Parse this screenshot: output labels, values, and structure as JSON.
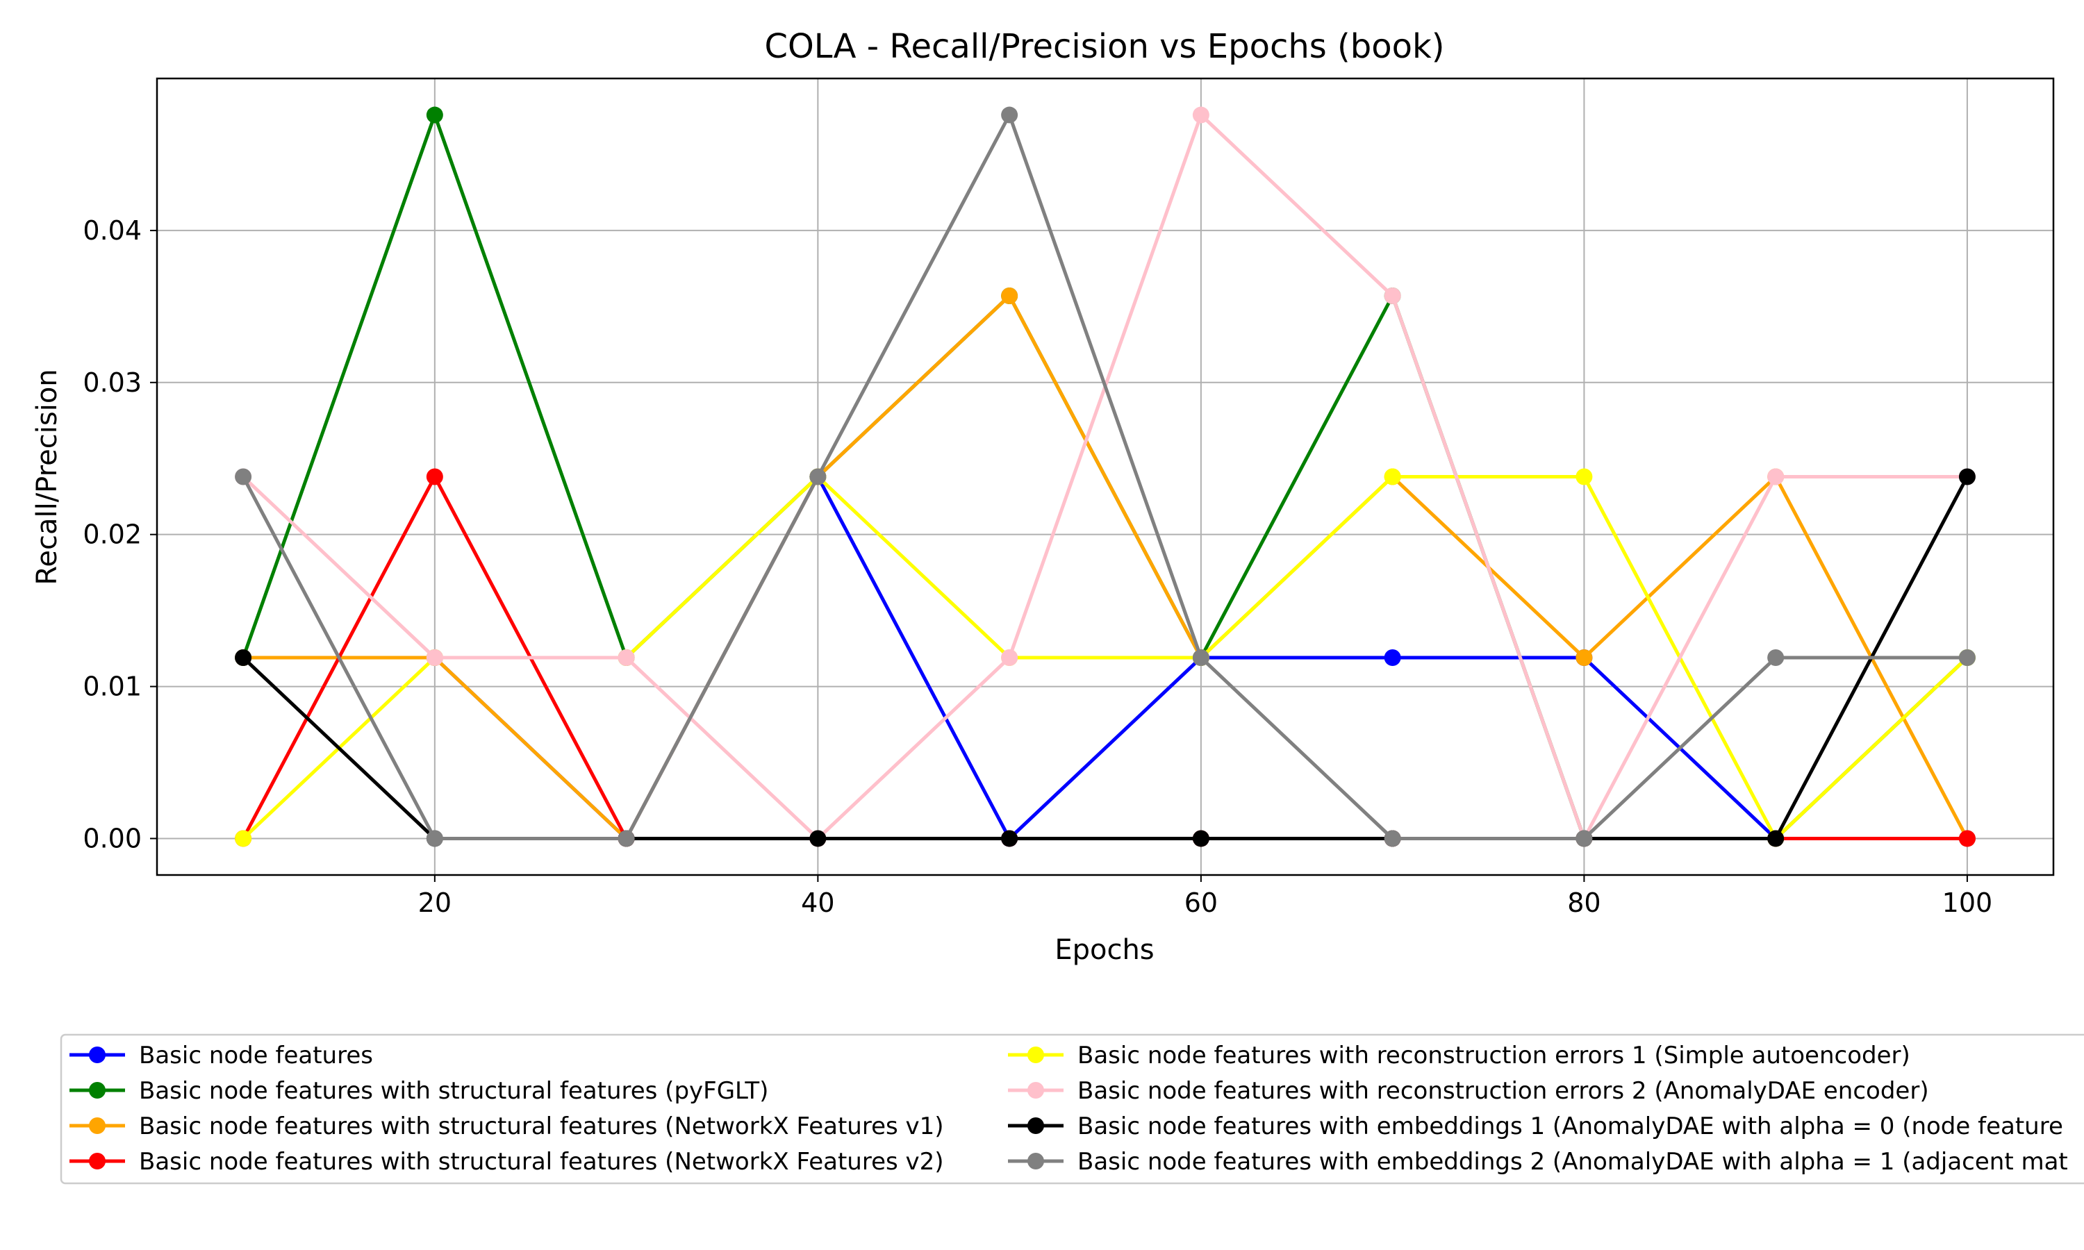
{
  "chart_data": {
    "type": "line",
    "title": "COLA - Recall/Precision vs Epochs (book)",
    "xlabel": "Epochs",
    "ylabel": "Recall/Precision",
    "x": [
      10,
      20,
      30,
      40,
      50,
      60,
      70,
      80,
      90,
      100
    ],
    "xlim": [
      5.5,
      104.5
    ],
    "ylim": [
      -0.0024,
      0.05
    ],
    "xticks": [
      20,
      40,
      60,
      80,
      100
    ],
    "xtick_labels": [
      "20",
      "40",
      "60",
      "80",
      "100"
    ],
    "yticks": [
      0.0,
      0.01,
      0.02,
      0.03,
      0.04
    ],
    "ytick_labels": [
      "0.00",
      "0.01",
      "0.02",
      "0.03",
      "0.04"
    ],
    "grid": true,
    "legend_position": "bottom",
    "series": [
      {
        "name": "Basic node features",
        "color": "#0000ff",
        "values": [
          0.0119,
          0.0119,
          0.0,
          0.0238,
          0.0,
          0.0119,
          0.0119,
          0.0119,
          0.0,
          0.0
        ]
      },
      {
        "name": "Basic node features with structural features (pyFGLT)",
        "color": "#008000",
        "values": [
          0.0119,
          0.0476,
          0.0119,
          0.0238,
          0.0357,
          0.0119,
          0.0357,
          0.0,
          0.0,
          0.0119
        ]
      },
      {
        "name": "Basic node features with structural features (NetworkX Features v1)",
        "color": "#ffa500",
        "values": [
          0.0119,
          0.0119,
          0.0,
          0.0238,
          0.0357,
          0.0119,
          0.0238,
          0.0119,
          0.0238,
          0.0
        ]
      },
      {
        "name": "Basic node features with structural features (NetworkX Features v2)",
        "color": "#ff0000",
        "values": [
          0.0,
          0.0238,
          0.0,
          0.0,
          0.0,
          0.0,
          0.0,
          0.0,
          0.0,
          0.0
        ]
      },
      {
        "name": "Basic node features with reconstruction errors 1 (Simple autoencoder)",
        "color": "#ffff00",
        "values": [
          0.0,
          0.0119,
          0.0119,
          0.0238,
          0.0119,
          0.0119,
          0.0238,
          0.0238,
          0.0,
          0.0119
        ]
      },
      {
        "name": "Basic node features with reconstruction errors 2 (AnomalyDAE encoder)",
        "color": "#ffc0cb",
        "values": [
          0.0238,
          0.0119,
          0.0119,
          0.0,
          0.0119,
          0.0476,
          0.0357,
          0.0,
          0.0238,
          0.0238
        ]
      },
      {
        "name": "Basic node features with embeddings 1 (AnomalyDAE with alpha = 0 (node feature",
        "color": "#000000",
        "values": [
          0.0119,
          0.0,
          0.0,
          0.0,
          0.0,
          0.0,
          0.0,
          0.0,
          0.0,
          0.0238
        ]
      },
      {
        "name": "Basic node features with embeddings 2 (AnomalyDAE with alpha = 1 (adjacent mat",
        "color": "#808080",
        "values": [
          0.0238,
          0.0,
          0.0,
          0.0238,
          0.0476,
          0.0119,
          0.0,
          0.0,
          0.0119,
          0.0119
        ]
      }
    ]
  }
}
